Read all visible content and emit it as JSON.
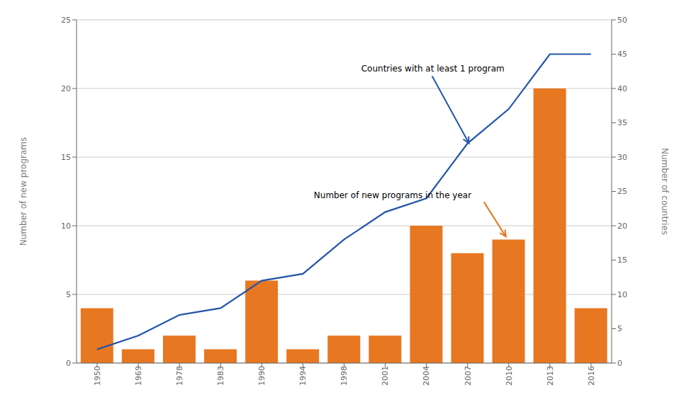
{
  "chart_data": {
    "type": "bar",
    "categories": [
      "1950",
      "1969",
      "1978",
      "1983",
      "1990",
      "1994",
      "1998",
      "2001",
      "2004",
      "2007",
      "2010",
      "2013",
      "2016"
    ],
    "series": [
      {
        "type": "bar",
        "color": "#E87722",
        "values": [
          4,
          1,
          2,
          1,
          6,
          1,
          2,
          2,
          10,
          8,
          9,
          20,
          4
        ]
      },
      {
        "type": "line",
        "color": "#2255AA",
        "axis": "y2",
        "values": [
          2,
          4,
          7,
          8,
          12,
          13,
          18,
          22,
          24,
          32,
          37,
          45,
          45
        ]
      }
    ],
    "ylabel": "Number of new programs",
    "y2label": "Number of countries",
    "ylim": [
      0,
      25
    ],
    "yticks": [
      0,
      5,
      10,
      15,
      20,
      25
    ],
    "y2lim": [
      0,
      50
    ],
    "y2ticks": [
      0,
      5,
      10,
      15,
      20,
      25,
      30,
      35,
      40,
      45,
      50
    ],
    "grid": true,
    "annotations": [
      {
        "text": "Countries with at least 1 program",
        "color": "#2255AA",
        "x": "2007",
        "y": 32,
        "axis": "y2"
      },
      {
        "text": "Number of new programs in the year",
        "color": "#E87722",
        "x": "2010",
        "y": 9
      }
    ]
  }
}
